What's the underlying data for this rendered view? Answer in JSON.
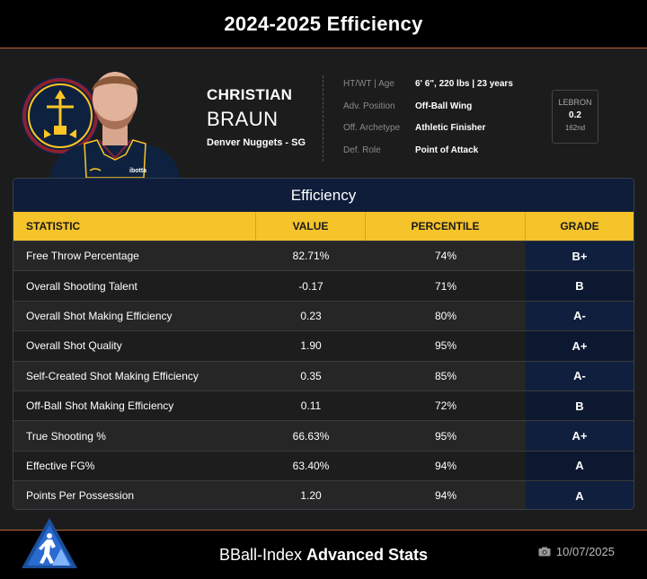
{
  "header_bar": {
    "title": "2024-2025 Efficiency"
  },
  "player": {
    "first_name": "CHRISTIAN",
    "last_name": "BRAUN",
    "team_position": "Denver Nuggets - SG",
    "jersey_sponsor": "ibotta"
  },
  "info": [
    {
      "label": "HT/WT | Age",
      "value": "6' 6\", 220 lbs | 23 years"
    },
    {
      "label": "Adv. Position",
      "value": "Off-Ball Wing"
    },
    {
      "label": "Off. Archetype",
      "value": "Athletic Finisher"
    },
    {
      "label": "Def. Role",
      "value": "Point of Attack"
    }
  ],
  "lebron": {
    "label": "LEBRON",
    "value": "0.2",
    "rank": "162nd"
  },
  "panel": {
    "title": "Efficiency",
    "columns": {
      "statistic": "STATISTIC",
      "value": "VALUE",
      "percentile": "PERCENTILE",
      "grade": "GRADE"
    },
    "rows": [
      {
        "statistic": "Free Throw Percentage",
        "value": "82.71%",
        "percentile": "74%",
        "grade": "B+"
      },
      {
        "statistic": "Overall Shooting Talent",
        "value": "-0.17",
        "percentile": "71%",
        "grade": "B"
      },
      {
        "statistic": "Overall Shot Making Efficiency",
        "value": "0.23",
        "percentile": "80%",
        "grade": "A-"
      },
      {
        "statistic": "Overall Shot Quality",
        "value": "1.90",
        "percentile": "95%",
        "grade": "A+"
      },
      {
        "statistic": "Self-Created Shot Making Efficiency",
        "value": "0.35",
        "percentile": "85%",
        "grade": "A-"
      },
      {
        "statistic": "Off-Ball Shot Making Efficiency",
        "value": "0.11",
        "percentile": "72%",
        "grade": "B"
      },
      {
        "statistic": "True Shooting %",
        "value": "66.63%",
        "percentile": "95%",
        "grade": "A+"
      },
      {
        "statistic": "Effective FG%",
        "value": "63.40%",
        "percentile": "94%",
        "grade": "A"
      },
      {
        "statistic": "Points Per Possession",
        "value": "1.20",
        "percentile": "94%",
        "grade": "A"
      }
    ]
  },
  "footer": {
    "brand": "BBall-Index",
    "subtitle": "Advanced Stats",
    "date": "10/07/2025"
  },
  "icons": {
    "team_logo": "nuggets-logo-icon",
    "footer_logo": "bball-index-logo-icon",
    "date_icon": "camera-icon"
  },
  "colors": {
    "accent": "#f5c32a",
    "navy": "#0f1d3a",
    "line": "#c0603a"
  }
}
